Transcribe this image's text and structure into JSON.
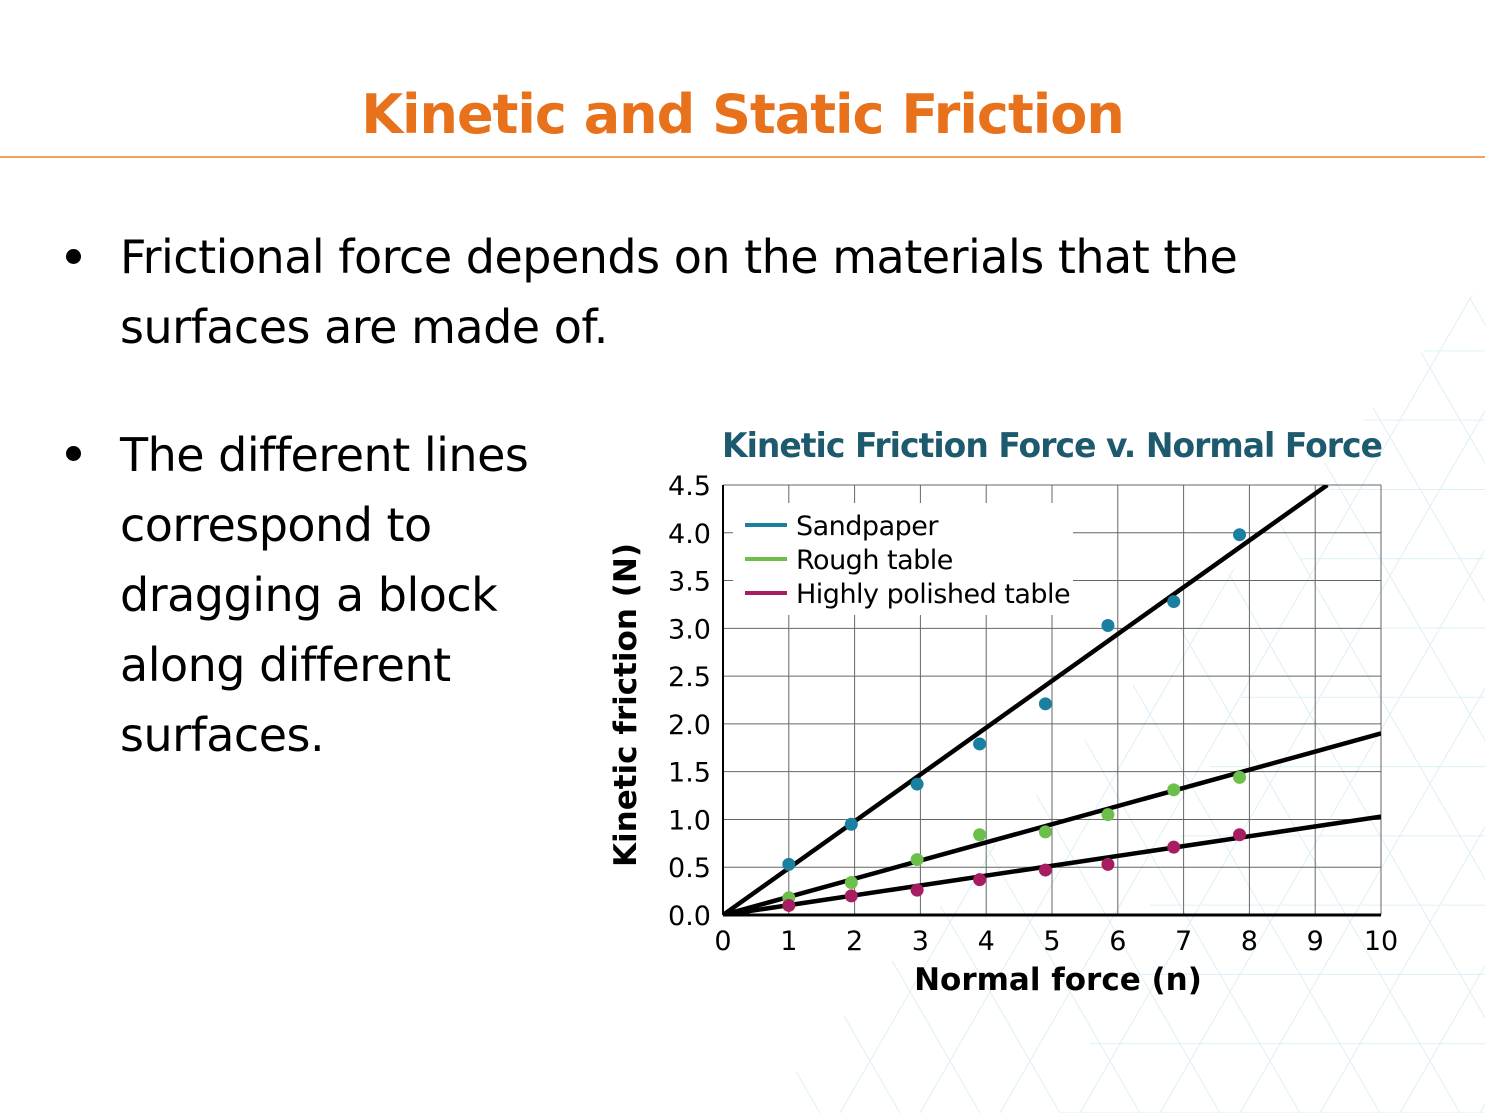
{
  "slide": {
    "title": "Kinetic and Static Friction",
    "bullets": [
      "Frictional force depends on the materials that the surfaces are made of.",
      "The different lines correspond to dragging a block along different surfaces."
    ]
  },
  "colors": {
    "title": "#e8711c",
    "chart_title": "#1d5a6e",
    "sandpaper": "#1a7fa0",
    "rough_table": "#6bbf4a",
    "polished_table": "#a61d62",
    "fit_line": "#000000",
    "background_pattern": "#bfe4f2"
  },
  "chart_data": {
    "type": "scatter",
    "title": "Kinetic Friction Force v. Normal Force",
    "xlabel": "Normal force (n)",
    "ylabel": "Kinetic friction (N)",
    "xlim": [
      0,
      10
    ],
    "ylim": [
      0,
      4.5
    ],
    "x_ticks": [
      "0",
      "1",
      "2",
      "3",
      "4",
      "5",
      "6",
      "7",
      "8",
      "9",
      "10"
    ],
    "y_ticks": [
      "0.0",
      "0.5",
      "1.0",
      "1.5",
      "2.0",
      "2.5",
      "3.0",
      "3.5",
      "4.0",
      "4.5"
    ],
    "grid": true,
    "legend_position": "top-left",
    "series": [
      {
        "name": "Sandpaper",
        "color": "#1a7fa0",
        "points": [
          [
            1,
            0.53
          ],
          [
            1.95,
            0.95
          ],
          [
            2.95,
            1.37
          ],
          [
            3.9,
            1.79
          ],
          [
            4.9,
            2.21
          ],
          [
            5.85,
            3.03
          ],
          [
            6.85,
            3.28
          ],
          [
            7.85,
            3.98
          ]
        ],
        "fit": {
          "slope": 0.49,
          "intercept": 0
        }
      },
      {
        "name": "Rough table",
        "color": "#6bbf4a",
        "points": [
          [
            1,
            0.18
          ],
          [
            1.95,
            0.34
          ],
          [
            2.95,
            0.58
          ],
          [
            3.9,
            0.84
          ],
          [
            4.9,
            0.87
          ],
          [
            5.85,
            1.05
          ],
          [
            6.85,
            1.31
          ],
          [
            7.85,
            1.44
          ]
        ],
        "fit": {
          "slope": 0.19,
          "intercept": 0
        }
      },
      {
        "name": "Highly polished table",
        "color": "#a61d62",
        "points": [
          [
            1,
            0.1
          ],
          [
            1.95,
            0.2
          ],
          [
            2.95,
            0.26
          ],
          [
            3.9,
            0.37
          ],
          [
            4.9,
            0.47
          ],
          [
            5.85,
            0.53
          ],
          [
            6.85,
            0.71
          ],
          [
            7.85,
            0.84
          ]
        ],
        "fit": {
          "slope": 0.103,
          "intercept": 0
        }
      }
    ]
  }
}
